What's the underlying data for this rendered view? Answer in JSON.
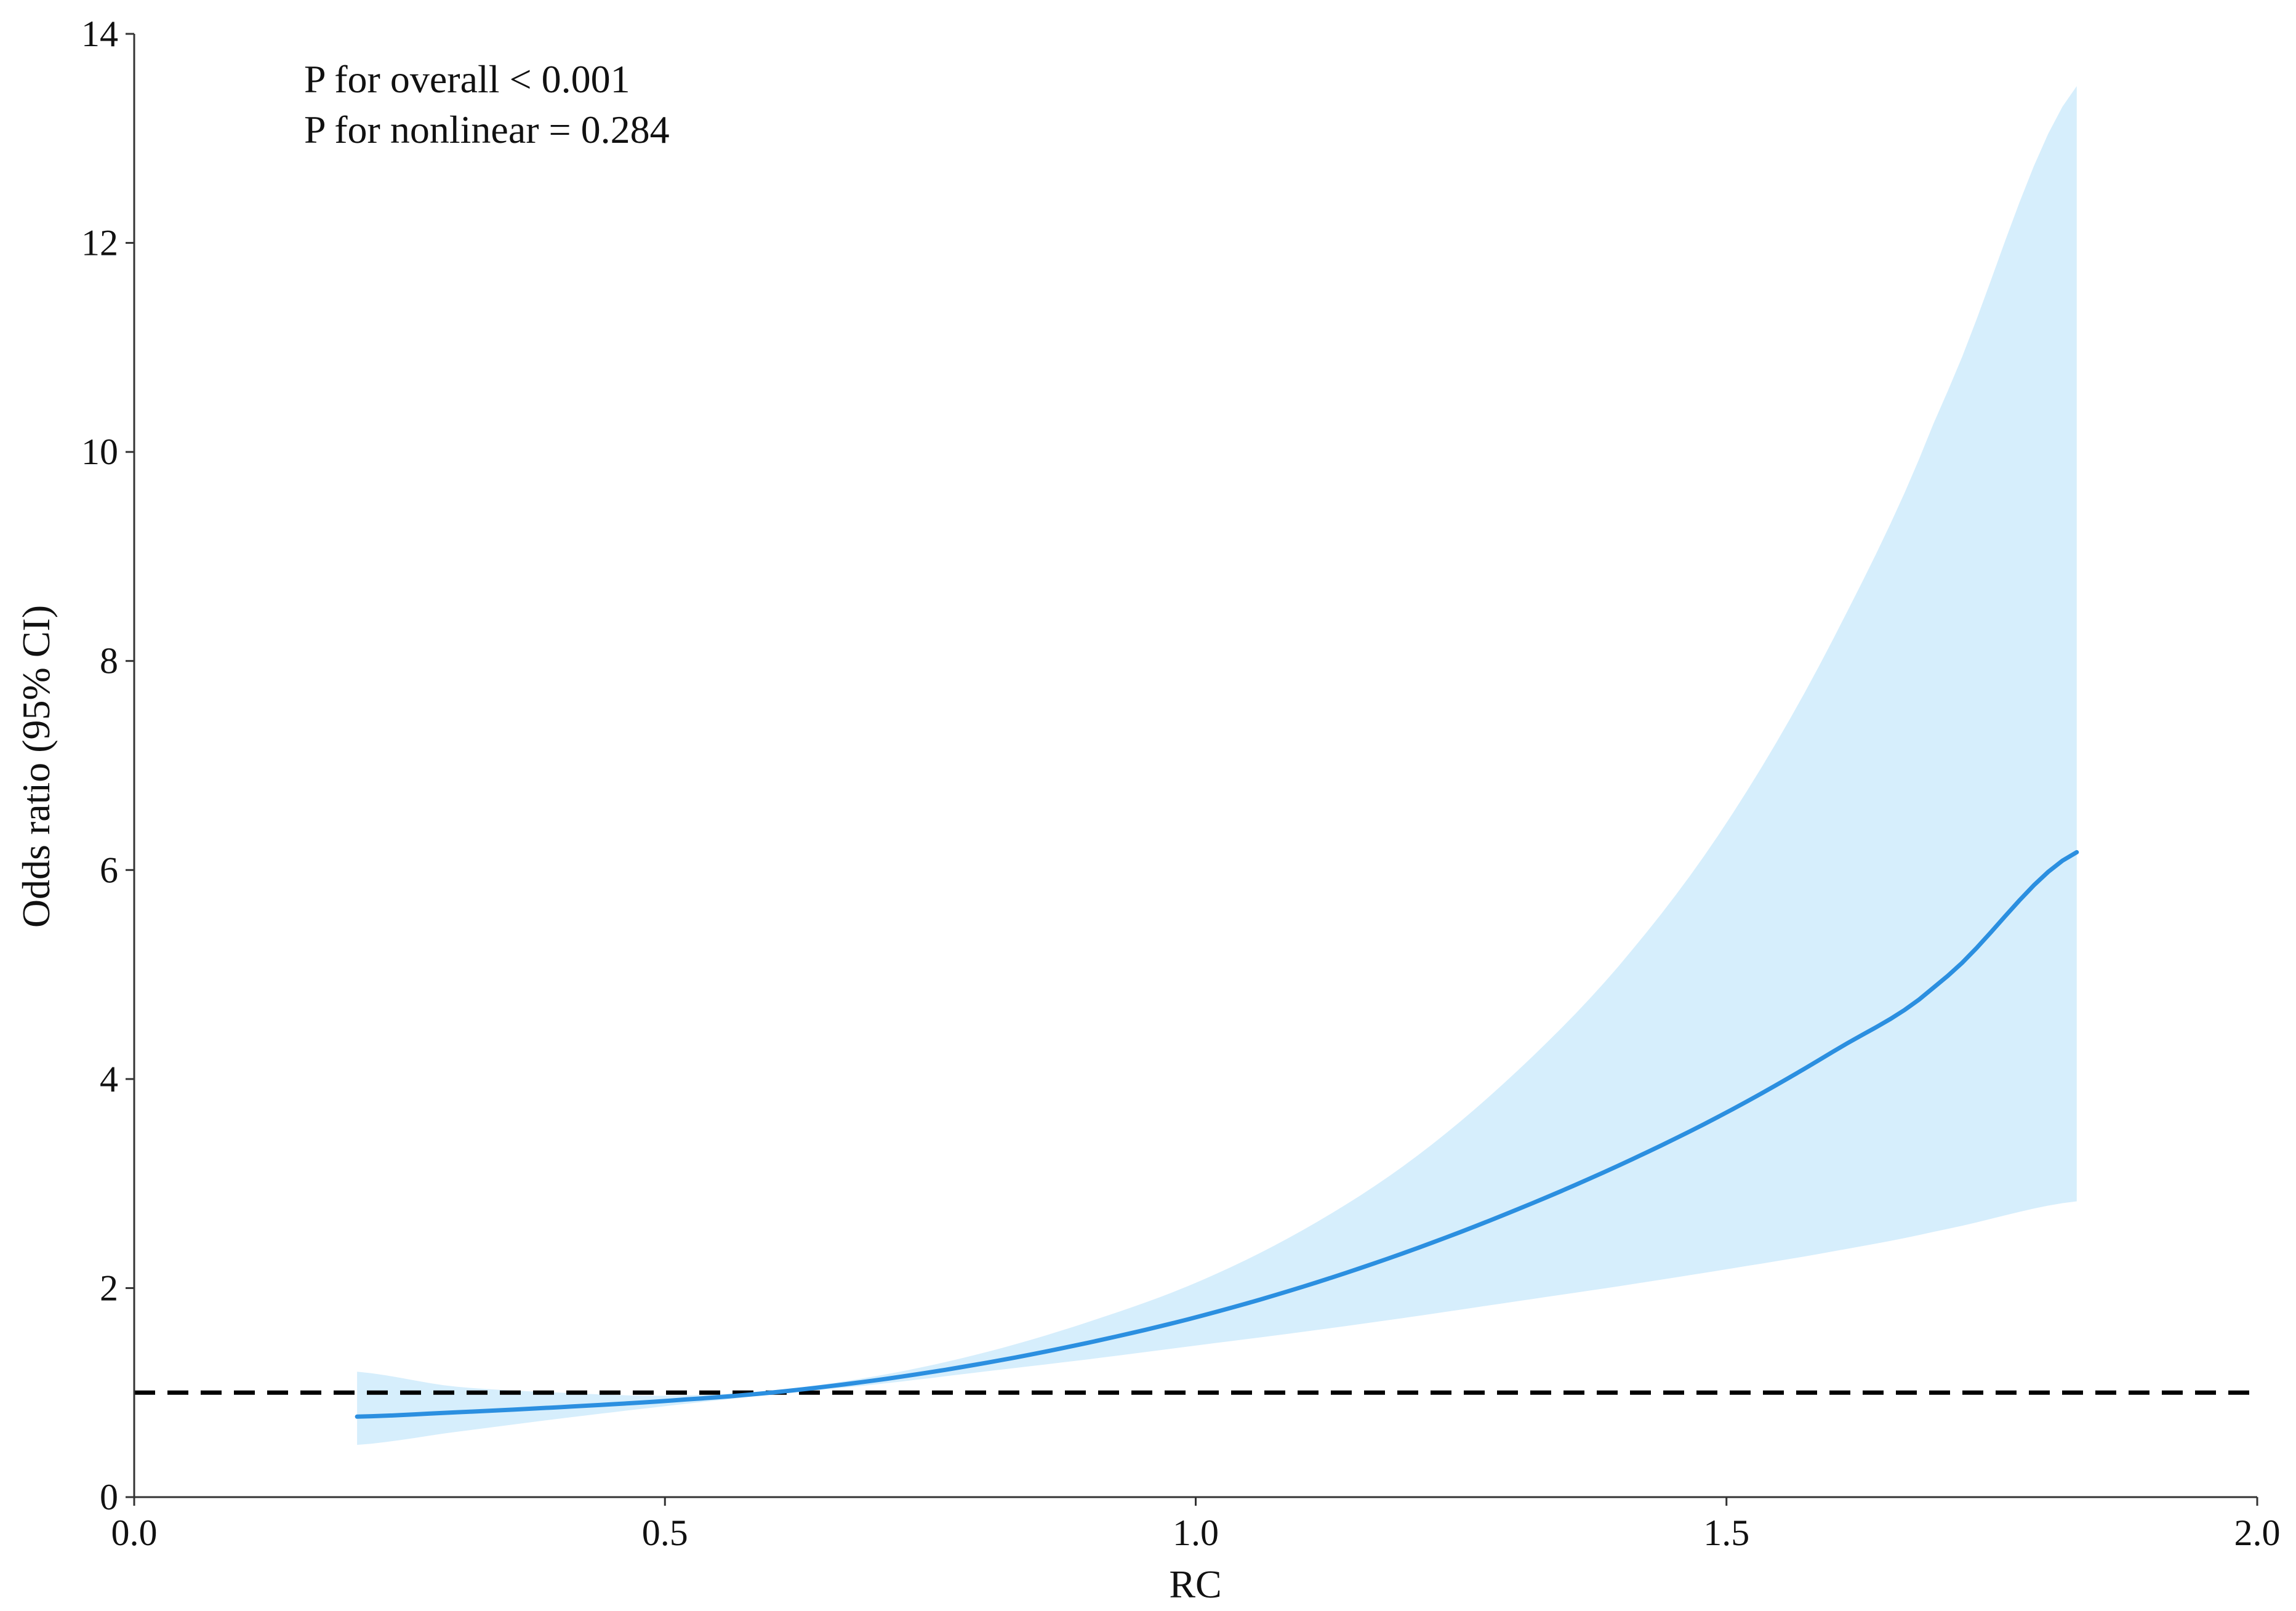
{
  "chart_data": {
    "type": "line",
    "title": "",
    "xlabel": "RC",
    "ylabel": "Odds ratio (95% CI)",
    "xlim": [
      0.0,
      2.0
    ],
    "ylim": [
      0,
      14
    ],
    "xticks": [
      0.0,
      0.5,
      1.0,
      1.5,
      2.0
    ],
    "xtick_labels": [
      "0.0",
      "0.5",
      "1.0",
      "1.5",
      "2.0"
    ],
    "yticks": [
      0,
      2,
      4,
      6,
      8,
      10,
      12,
      14
    ],
    "ytick_labels": [
      "0",
      "2",
      "4",
      "6",
      "8",
      "10",
      "12",
      "14"
    ],
    "grid": false,
    "annotations": [
      "P for overall < 0.001",
      "P for nonlinear = 0.284"
    ],
    "reference_line": {
      "y": 1,
      "style": "dashed",
      "color": "#000000"
    },
    "series": [
      {
        "x": [
          0.21,
          0.3,
          0.4,
          0.5,
          0.6,
          0.7,
          0.8,
          0.9,
          1.0,
          1.1,
          1.2,
          1.3,
          1.4,
          1.5,
          1.6,
          1.7,
          1.83
        ],
        "values": [
          0.77,
          0.81,
          0.86,
          0.92,
          1.0,
          1.12,
          1.28,
          1.48,
          1.72,
          2.01,
          2.35,
          2.74,
          3.18,
          3.68,
          4.26,
          4.92,
          6.17
        ],
        "lower": [
          0.5,
          0.62,
          0.75,
          0.87,
          0.98,
          1.08,
          1.2,
          1.32,
          1.45,
          1.58,
          1.72,
          1.87,
          2.02,
          2.18,
          2.35,
          2.55,
          2.83
        ],
        "upper": [
          1.2,
          1.06,
          1.0,
          0.97,
          1.02,
          1.16,
          1.38,
          1.68,
          2.05,
          2.55,
          3.2,
          4.05,
          5.1,
          6.45,
          8.2,
          10.4,
          13.5
        ],
        "color": "#2b8fe0",
        "band_color": "#d6eefc"
      }
    ]
  }
}
